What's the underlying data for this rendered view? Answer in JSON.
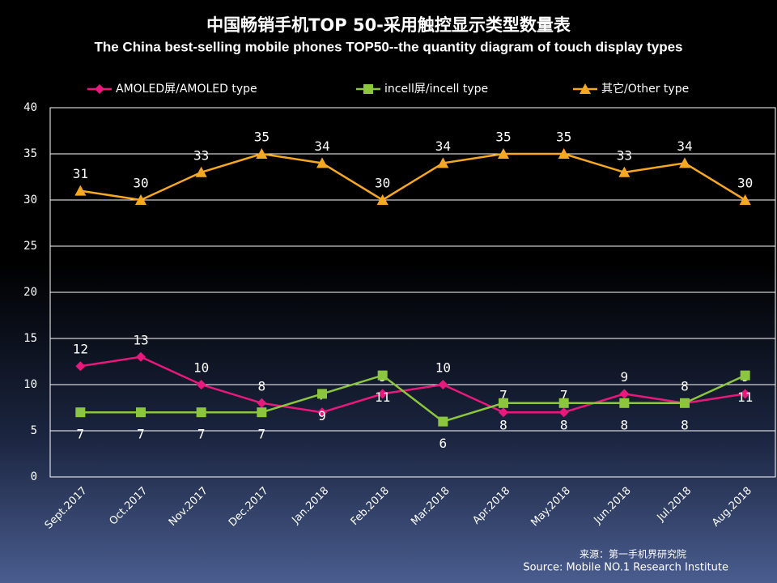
{
  "chart_data": {
    "type": "line",
    "title": "中国畅销手机TOP 50-采用触控显示类型数量表",
    "subtitle": "The China best-selling mobile phones TOP50--the quantity diagram of touch display types",
    "categories": [
      "Sept.2017",
      "Oct.2017",
      "Nov.2017",
      "Dec.2017",
      "Jan.2018",
      "Feb.2018",
      "Mar.2018",
      "Apr.2018",
      "May.2018",
      "Jun.2018",
      "Jul.2018",
      "Aug.2018"
    ],
    "series": [
      {
        "name": "AMOLED屏/AMOLED type",
        "color": "#e8197c",
        "marker": "diamond",
        "values": [
          12,
          13,
          10,
          8,
          7,
          9,
          10,
          7,
          7,
          9,
          8,
          9
        ]
      },
      {
        "name": "incell屏/incell type",
        "color": "#8cc63f",
        "marker": "square",
        "values": [
          7,
          7,
          7,
          7,
          9,
          11,
          6,
          8,
          8,
          8,
          8,
          11
        ]
      },
      {
        "name": "其它/Other type",
        "color": "#f7a823",
        "marker": "triangle",
        "values": [
          31,
          30,
          33,
          35,
          34,
          30,
          34,
          35,
          35,
          33,
          34,
          30
        ]
      }
    ],
    "ylim": [
      0,
      40
    ],
    "yticks": [
      0,
      5,
      10,
      15,
      20,
      25,
      30,
      35,
      40
    ],
    "grid": true,
    "legend": "top",
    "source_cn": "来源：第一手机界研究院",
    "source": "Source: Mobile NO.1 Research Institute"
  }
}
